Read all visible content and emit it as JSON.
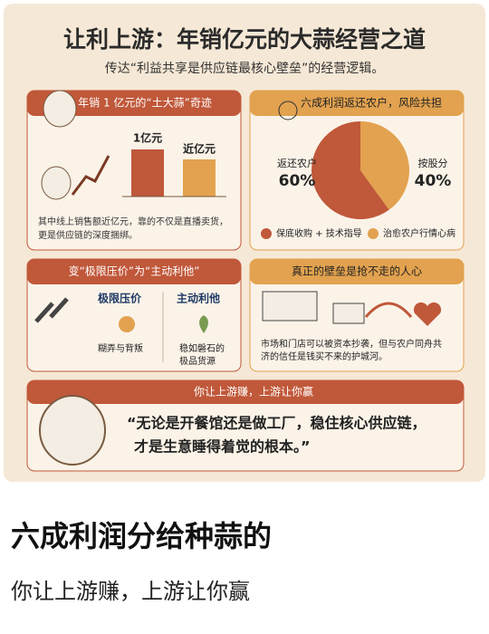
{
  "header": {
    "title": "让利上游：年销亿元的大蒜经营之道",
    "subtitle": "传达“利益共享是供应链最核心壁垒”的经营逻辑。"
  },
  "panel1": {
    "title": "年销 1 亿元的“土大蒜”奇迹",
    "bar_labels": [
      "1亿元",
      "近亿元"
    ],
    "text": [
      "其中线上销售额近亿元，靠的不仅是直播卖货，",
      "更是供应链的深度捆绑。"
    ]
  },
  "panel2": {
    "title": "六成利润返还农户，风险共担",
    "pie": {
      "slices": [
        {
          "label": "返还农户",
          "value": 60,
          "value_label": "60%",
          "color": "#c0583a"
        },
        {
          "label": "按股分",
          "value": 40,
          "value_label": "40%",
          "color": "#e2a24f"
        }
      ]
    },
    "bullets": [
      "保底收购 + 技术指导",
      "治愈农户行情心病"
    ]
  },
  "panel3": {
    "title": "变“极限压价”为“主动利他”",
    "left": {
      "title": "极限压价",
      "text": [
        "糊弄与背叛"
      ]
    },
    "right": {
      "title": "主动利他",
      "text": [
        "稳如磐石的",
        "极品货源"
      ]
    }
  },
  "panel4": {
    "title": "真正的壁垒是抢不走的人心",
    "text": [
      "市场和门店可以被资本抄袭，但与农户同舟共",
      "济的信任是钱买不来的护城河。"
    ]
  },
  "panel5": {
    "title": "你让上游赚，上游让你赢",
    "quote": [
      "“无论是开餐馆还是做工厂，稳住核心供应链，",
      "才是生意睡得着觉的根本。”"
    ]
  },
  "post": {
    "title": "六成利润分给种蒜的",
    "subtitle": "你让上游赚，上游让你赢"
  }
}
